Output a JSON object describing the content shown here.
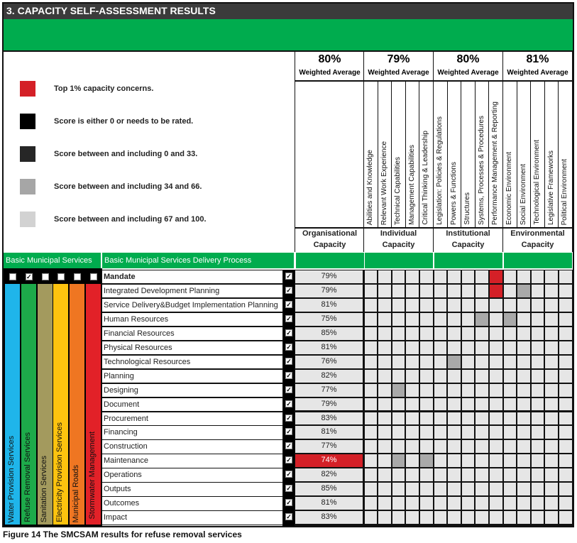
{
  "title": "3. CAPACITY SELF-ASSESSMENT RESULTS",
  "legend": [
    {
      "color": "#d42027",
      "label": "Top 1% capacity concerns."
    },
    {
      "color": "#000000",
      "label": "Score is either 0 or needs to be rated."
    },
    {
      "color": "#262626",
      "label": "Score between and including 0 and 33."
    },
    {
      "color": "#a6a6a6",
      "label": "Score between and including 34 and 66."
    },
    {
      "color": "#d2d2d2",
      "label": "Score between and including 67 and 100."
    }
  ],
  "groups": [
    {
      "pct": "80%",
      "avg_label": "Weighted Average",
      "name": "Organisational Capacity",
      "subs": []
    },
    {
      "pct": "79%",
      "avg_label": "Weighted Average",
      "name": "Individual Capacity",
      "subs": [
        "Abilities and Knowledge",
        "Relevant Work Experience",
        "Technical Capabilities",
        "Management Capabilities",
        "Critical Thinking & Leadership"
      ]
    },
    {
      "pct": "80%",
      "avg_label": "Weighted Average",
      "name": "Institutional Capacity",
      "subs": [
        "Legislation: Policies & Regulations",
        "Powers & Functions",
        "Structures",
        "Systems, Processes & Procedures",
        "Performance Management & Reporting"
      ]
    },
    {
      "pct": "81%",
      "avg_label": "Weighted Average",
      "name": "Environmental Capacity",
      "subs": [
        "Economic Environment",
        "Social Environment",
        "Technological Environment",
        "Legislative Frameworks",
        "Political Environment"
      ]
    }
  ],
  "section_labels": {
    "services": "Basic Municipal Services",
    "process": "Basic Municipal Services Delivery Process"
  },
  "services": [
    {
      "name": "Water Provision Services",
      "color": "#1fb5ea",
      "checked": false
    },
    {
      "name": "Refuse Removal Services",
      "color": "#1daa4a",
      "checked": true
    },
    {
      "name": "Sanitation Services",
      "color": "#a39a5e",
      "checked": false
    },
    {
      "name": "Electricity Provision Services",
      "color": "#fdc30f",
      "checked": false
    },
    {
      "name": "Municipal Roads",
      "color": "#ef7622",
      "checked": false
    },
    {
      "name": "Stormwater Management",
      "color": "#e22128",
      "checked": false
    }
  ],
  "colors": {
    "cell": "#e6e6e6",
    "concern": "#d42027",
    "mid": "#a9a9a9",
    "green": "#00ac4e"
  },
  "rows": [
    {
      "name": "Mandate",
      "bold": true,
      "score": "79%",
      "checked": true,
      "marks": {
        "9": "concern"
      }
    },
    {
      "name": "Integrated Development Planning",
      "score": "79%",
      "checked": true,
      "marks": {
        "9": "concern",
        "11": "mid"
      }
    },
    {
      "name": "Service Delivery&Budget Implementation Planning",
      "score": "81%",
      "checked": true,
      "marks": {}
    },
    {
      "name": "Human Resources",
      "score": "75%",
      "checked": true,
      "marks": {
        "8": "mid",
        "10": "mid"
      }
    },
    {
      "name": "Financial Resources",
      "score": "85%",
      "checked": true,
      "marks": {}
    },
    {
      "name": "Physical Resources",
      "score": "81%",
      "checked": true,
      "marks": {}
    },
    {
      "name": "Technological Resources",
      "score": "76%",
      "checked": true,
      "marks": {
        "6": "mid"
      }
    },
    {
      "name": "Planning",
      "score": "82%",
      "checked": true,
      "marks": {}
    },
    {
      "name": "Designing",
      "score": "77%",
      "checked": true,
      "marks": {
        "2": "mid"
      }
    },
    {
      "name": "Document",
      "score": "79%",
      "checked": true,
      "marks": {}
    },
    {
      "name": "Procurement",
      "score": "83%",
      "checked": true,
      "marks": {}
    },
    {
      "name": "Financing",
      "score": "81%",
      "checked": true,
      "marks": {}
    },
    {
      "name": "Construction",
      "score": "77%",
      "checked": true,
      "marks": {}
    },
    {
      "name": "Maintenance",
      "score": "74%",
      "checked": true,
      "concern": true,
      "marks": {
        "2": "mid",
        "4": "mid"
      }
    },
    {
      "name": "Operations",
      "score": "82%",
      "checked": true,
      "marks": {}
    },
    {
      "name": "Outputs",
      "score": "85%",
      "checked": true,
      "marks": {}
    },
    {
      "name": "Outcomes",
      "score": "81%",
      "checked": true,
      "marks": {}
    },
    {
      "name": "Impact",
      "score": "83%",
      "checked": true,
      "marks": {}
    }
  ],
  "caption": "Figure 14 The SMCSAM results for refuse removal services"
}
